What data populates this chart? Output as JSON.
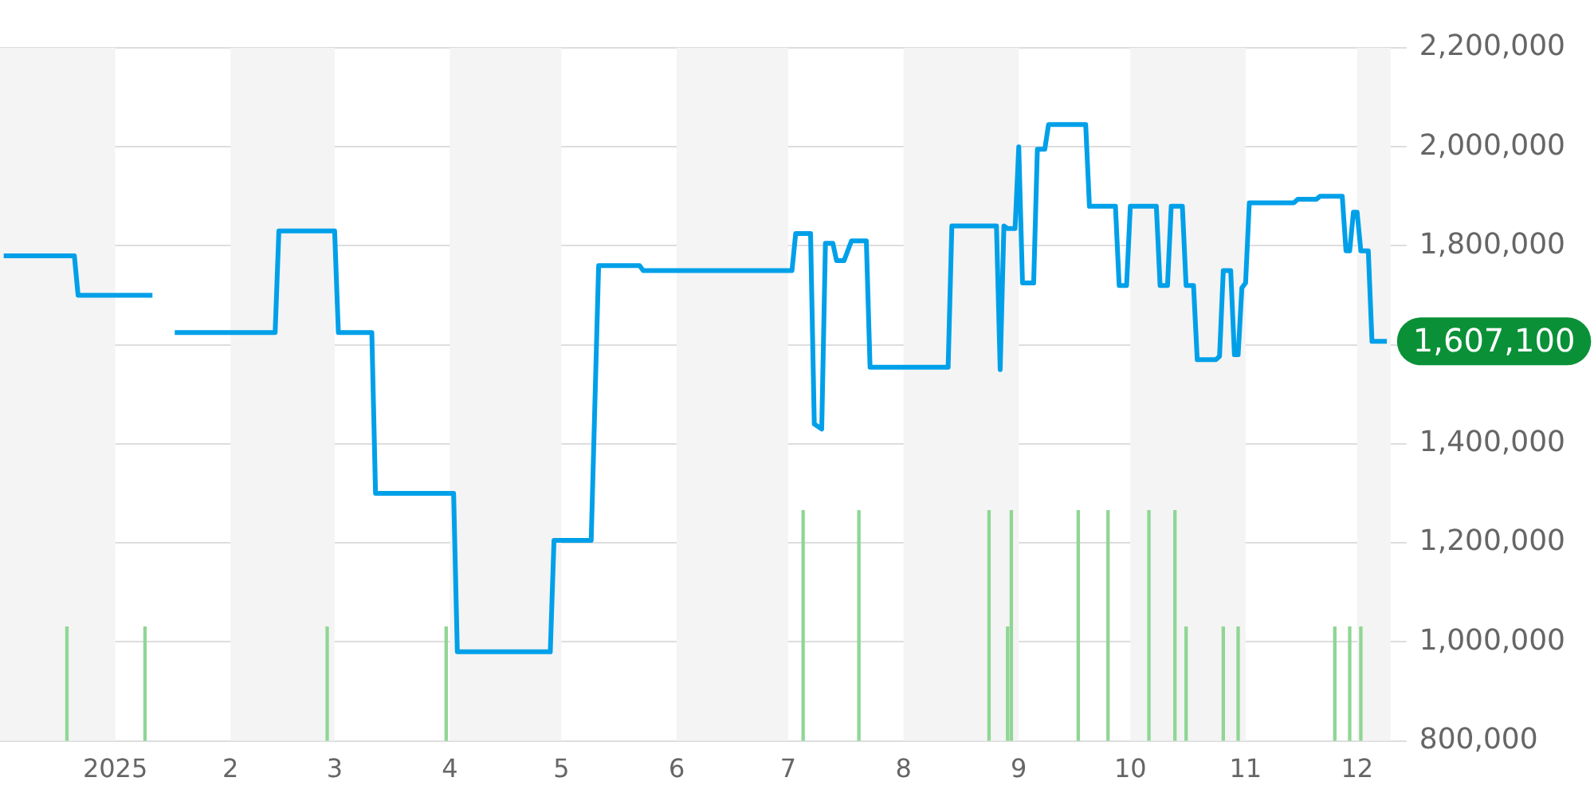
{
  "chart_data": {
    "type": "line",
    "xlim": [
      "2024-12-01",
      "2025-12-10"
    ],
    "xticks": [
      {
        "value": "2025-01-01",
        "label": "2025"
      },
      {
        "value": "2025-02-01",
        "label": "2"
      },
      {
        "value": "2025-03-01",
        "label": "3"
      },
      {
        "value": "2025-04-01",
        "label": "4"
      },
      {
        "value": "2025-05-01",
        "label": "5"
      },
      {
        "value": "2025-06-01",
        "label": "6"
      },
      {
        "value": "2025-07-01",
        "label": "7"
      },
      {
        "value": "2025-08-01",
        "label": "8"
      },
      {
        "value": "2025-09-01",
        "label": "9"
      },
      {
        "value": "2025-10-01",
        "label": "10"
      },
      {
        "value": "2025-11-01",
        "label": "11"
      },
      {
        "value": "2025-12-01",
        "label": "12"
      }
    ],
    "ylim": [
      800000,
      2200000
    ],
    "yticks": [
      {
        "value": 800000,
        "label": "800,000"
      },
      {
        "value": 1000000,
        "label": "1,000,000"
      },
      {
        "value": 1200000,
        "label": "1,200,000"
      },
      {
        "value": 1400000,
        "label": "1,400,000"
      },
      {
        "value": 1600000,
        "label": null
      },
      {
        "value": 1800000,
        "label": "1,800,000"
      },
      {
        "value": 2000000,
        "label": "2,000,000"
      },
      {
        "value": 2200000,
        "label": "2,200,000"
      }
    ],
    "grid": "y",
    "legend": false,
    "marker": "none",
    "line_style": "solid",
    "series": [
      {
        "color": "#00a0e9",
        "x": [
          "2024-12-02",
          "2024-12-21",
          "2024-12-22",
          "2025-01-11",
          "2025-01-14",
          "2025-01-17",
          "2025-02-13",
          "2025-02-14",
          "2025-03-01",
          "2025-03-02",
          "2025-03-11",
          "2025-03-12",
          "2025-04-02",
          "2025-04-03",
          "2025-04-28",
          "2025-04-29",
          "2025-05-09",
          "2025-05-11",
          "2025-05-22",
          "2025-05-23",
          "2025-07-02",
          "2025-07-03",
          "2025-07-07",
          "2025-07-08",
          "2025-07-10",
          "2025-07-11",
          "2025-07-13",
          "2025-07-14",
          "2025-07-16",
          "2025-07-18",
          "2025-07-22",
          "2025-07-23",
          "2025-08-13",
          "2025-08-14",
          "2025-08-26",
          "2025-08-27",
          "2025-08-28",
          "2025-08-29",
          "2025-08-31",
          "2025-09-01",
          "2025-09-02",
          "2025-09-05",
          "2025-09-06",
          "2025-09-08",
          "2025-09-09",
          "2025-09-19",
          "2025-09-20",
          "2025-09-27",
          "2025-09-28",
          "2025-09-30",
          "2025-10-01",
          "2025-10-08",
          "2025-10-09",
          "2025-10-11",
          "2025-10-12",
          "2025-10-15",
          "2025-10-16",
          "2025-10-18",
          "2025-10-19",
          "2025-10-24",
          "2025-10-25",
          "2025-10-26",
          "2025-10-28",
          "2025-10-29",
          "2025-10-30",
          "2025-10-31",
          "2025-11-01",
          "2025-11-02",
          "2025-11-14",
          "2025-11-15",
          "2025-11-20",
          "2025-11-21",
          "2025-11-27",
          "2025-11-28",
          "2025-11-29",
          "2025-11-30",
          "2025-12-01",
          "2025-12-02",
          "2025-12-04",
          "2025-12-05",
          "2025-12-09"
        ],
        "values": [
          1780000,
          1780000,
          1700000,
          1700000,
          null,
          1625000,
          1625000,
          1830000,
          1830000,
          1625000,
          1625000,
          1300000,
          1300000,
          980000,
          980000,
          1205000,
          1205000,
          1760000,
          1760000,
          1750000,
          1750000,
          1825000,
          1825000,
          1440000,
          1430000,
          1805000,
          1805000,
          1770000,
          1770000,
          1810000,
          1810000,
          1555000,
          1555000,
          1840000,
          1840000,
          1550000,
          1840000,
          1835000,
          1835000,
          2000000,
          1725000,
          1725000,
          1995000,
          1995000,
          2045000,
          2045000,
          1880000,
          1880000,
          1720000,
          1720000,
          1880000,
          1880000,
          1720000,
          1720000,
          1880000,
          1880000,
          1720000,
          1720000,
          1570000,
          1570000,
          1577000,
          1750000,
          1750000,
          1580000,
          1580000,
          1715000,
          1725000,
          1887000,
          1887000,
          1894000,
          1894000,
          1900000,
          1900000,
          1790000,
          1790000,
          1868000,
          1868000,
          1790000,
          1790000,
          1607100,
          1607100
        ]
      },
      {
        "type": "bar",
        "color": "#8fd694",
        "base": [
          800000,
          800000,
          800000,
          800000,
          800000,
          800000,
          800000,
          800000,
          800000,
          800000,
          800000,
          800000,
          800000,
          800000,
          800000,
          800000,
          800000,
          800000,
          800000
        ],
        "x": [
          "2024-12-19",
          "2025-01-09",
          "2025-02-27",
          "2025-03-31",
          "2025-07-05",
          "2025-07-20",
          "2025-08-24",
          "2025-08-29",
          "2025-08-30",
          "2025-09-17",
          "2025-09-25",
          "2025-10-06",
          "2025-10-13",
          "2025-10-16",
          "2025-10-26",
          "2025-10-30",
          "2025-11-25",
          "2025-11-29",
          "2025-12-02"
        ],
        "values": [
          230000,
          230000,
          230000,
          230000,
          465000,
          465000,
          465000,
          230000,
          465000,
          465000,
          465000,
          465000,
          465000,
          230000,
          230000,
          230000,
          230000,
          230000,
          230000
        ]
      }
    ],
    "bands": [
      {
        "axis": "x",
        "from": "2024-12-01",
        "to": "2025-01-01",
        "color": "#f4f4f4"
      },
      {
        "axis": "x",
        "from": "2025-02-01",
        "to": "2025-03-01",
        "color": "#f4f4f4"
      },
      {
        "axis": "x",
        "from": "2025-04-01",
        "to": "2025-05-01",
        "color": "#f4f4f4"
      },
      {
        "axis": "x",
        "from": "2025-06-01",
        "to": "2025-07-01",
        "color": "#f4f4f4"
      },
      {
        "axis": "x",
        "from": "2025-08-01",
        "to": "2025-09-01",
        "color": "#f4f4f4"
      },
      {
        "axis": "x",
        "from": "2025-10-01",
        "to": "2025-11-01",
        "color": "#f4f4f4"
      },
      {
        "axis": "x",
        "from": "2025-12-01",
        "to": "2025-12-10",
        "color": "#f4f4f4"
      }
    ],
    "annotations": [
      {
        "text": "1,607,100",
        "x": "2025-12-09",
        "y": 1607100
      }
    ]
  }
}
